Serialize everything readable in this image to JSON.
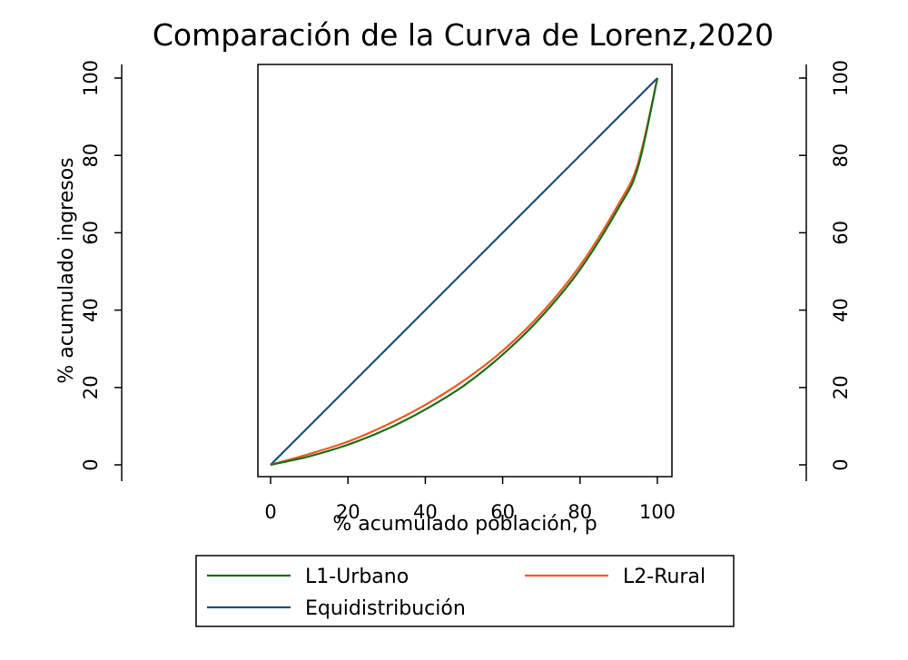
{
  "chart_data": {
    "type": "line",
    "title": "Comparación de la Curva de Lorenz,2020",
    "xlabel": "% acumulado población, p",
    "ylabel": "% acumulado ingresos",
    "xlim": [
      0,
      100
    ],
    "ylim": [
      0,
      100
    ],
    "xticks": [
      "0",
      "20",
      "40",
      "60",
      "80",
      "100"
    ],
    "yticks": [
      "0",
      "20",
      "40",
      "60",
      "80",
      "100"
    ],
    "grid": false,
    "legend_position": "bottom",
    "series": [
      {
        "name": "L1-Urbano",
        "color": "#1a6e1a",
        "x": [
          0,
          10,
          20,
          30,
          40,
          50,
          60,
          70,
          80,
          90,
          95,
          100
        ],
        "y": [
          0,
          2.2,
          5.2,
          9.2,
          14.3,
          20.5,
          28.5,
          38.3,
          50.5,
          66.5,
          77,
          100
        ]
      },
      {
        "name": "L2-Rural",
        "color": "#ee5a1e",
        "x": [
          0,
          10,
          20,
          30,
          40,
          50,
          60,
          70,
          80,
          90,
          95,
          100
        ],
        "y": [
          0,
          2.8,
          6.0,
          10.3,
          15.5,
          21.8,
          29.5,
          39.2,
          51.5,
          67.5,
          78,
          100
        ]
      },
      {
        "name": "Equidistribución",
        "color": "#1f4e79",
        "x": [
          0,
          100
        ],
        "y": [
          0,
          100
        ]
      }
    ]
  }
}
